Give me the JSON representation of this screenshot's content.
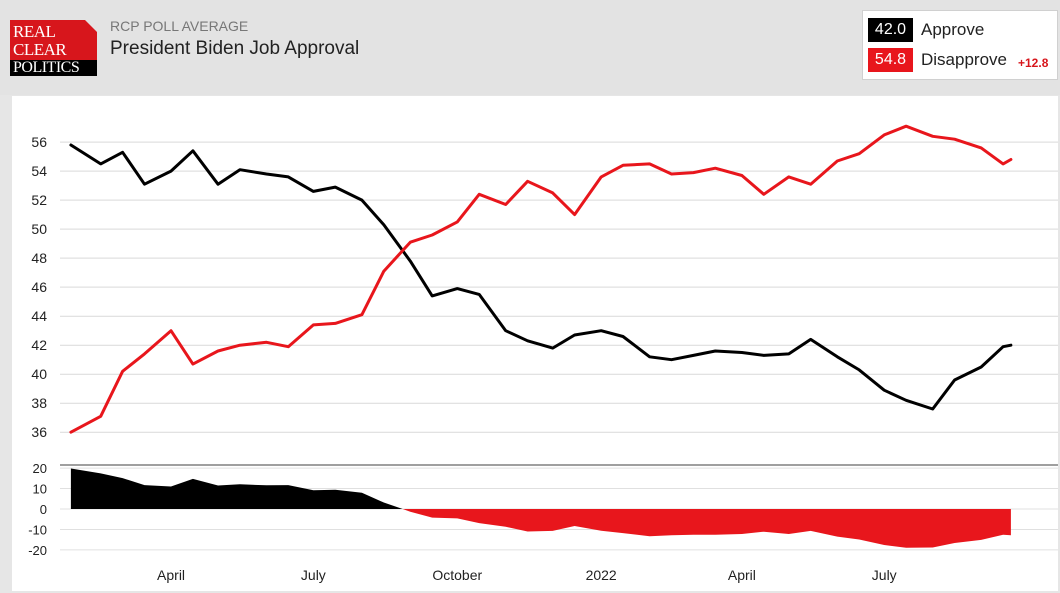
{
  "header": {
    "subtitle": "RCP POLL AVERAGE",
    "title": "President Biden Job Approval",
    "logo": {
      "line1": "REAL",
      "line2": "CLEAR",
      "line3": "POLITICS"
    }
  },
  "legend": {
    "approve": {
      "value": "42.0",
      "label": "Approve",
      "color": "#000000"
    },
    "disapprove": {
      "value": "54.8",
      "label": "Disapprove",
      "color": "#e8161c",
      "spread": "+12.8"
    }
  },
  "chart_data": [
    {
      "type": "line",
      "x": [
        "2021-01-27",
        "2021-02-15",
        "2021-03-01",
        "2021-03-15",
        "2021-04-01",
        "2021-04-15",
        "2021-05-01",
        "2021-05-15",
        "2021-06-01",
        "2021-06-15",
        "2021-07-01",
        "2021-07-15",
        "2021-08-01",
        "2021-08-15",
        "2021-09-01",
        "2021-09-15",
        "2021-10-01",
        "2021-10-15",
        "2021-11-01",
        "2021-11-15",
        "2021-12-01",
        "2021-12-15",
        "2022-01-01",
        "2022-01-15",
        "2022-02-01",
        "2022-02-15",
        "2022-03-01",
        "2022-03-15",
        "2022-04-01",
        "2022-04-15",
        "2022-05-01",
        "2022-05-15",
        "2022-06-01",
        "2022-06-15",
        "2022-07-01",
        "2022-07-15",
        "2022-08-01",
        "2022-08-15",
        "2022-09-01",
        "2022-09-15",
        "2022-09-20"
      ],
      "series": [
        {
          "name": "Approve",
          "color": "#000000",
          "values": [
            55.8,
            54.5,
            55.3,
            53.1,
            54.0,
            55.4,
            53.1,
            54.1,
            53.8,
            53.6,
            52.6,
            52.9,
            52.0,
            50.3,
            47.8,
            45.4,
            45.9,
            45.5,
            43.0,
            42.3,
            41.8,
            42.7,
            43.0,
            42.6,
            41.2,
            41.0,
            41.3,
            41.6,
            41.5,
            41.3,
            41.4,
            42.4,
            41.2,
            40.3,
            38.9,
            38.2,
            37.6,
            39.6,
            40.5,
            41.9,
            42.0
          ]
        },
        {
          "name": "Disapprove",
          "color": "#e8161c",
          "values": [
            36.0,
            37.1,
            40.2,
            41.4,
            43.0,
            40.7,
            41.6,
            42.0,
            42.2,
            41.9,
            43.4,
            43.5,
            44.1,
            47.1,
            49.1,
            49.6,
            50.5,
            52.4,
            51.7,
            53.3,
            52.5,
            51.0,
            53.6,
            54.4,
            54.5,
            53.8,
            53.9,
            54.2,
            53.7,
            52.4,
            53.6,
            53.1,
            54.7,
            55.2,
            56.5,
            57.1,
            56.4,
            56.2,
            55.6,
            54.5,
            54.8
          ]
        }
      ],
      "yticks": [
        36,
        38,
        40,
        42,
        44,
        46,
        48,
        50,
        52,
        54,
        56
      ],
      "ylim": [
        34.5,
        57.8
      ],
      "xticks": [
        "April",
        "July",
        "October",
        "2022",
        "April",
        "July"
      ],
      "grid": true
    },
    {
      "type": "area",
      "x": [
        "2021-01-27",
        "2021-02-15",
        "2021-03-01",
        "2021-03-15",
        "2021-04-01",
        "2021-04-15",
        "2021-05-01",
        "2021-05-15",
        "2021-06-01",
        "2021-06-15",
        "2021-07-01",
        "2021-07-15",
        "2021-08-01",
        "2021-08-15",
        "2021-09-01",
        "2021-09-15",
        "2021-10-01",
        "2021-10-15",
        "2021-11-01",
        "2021-11-15",
        "2021-12-01",
        "2021-12-15",
        "2022-01-01",
        "2022-01-15",
        "2022-02-01",
        "2022-02-15",
        "2022-03-01",
        "2022-03-15",
        "2022-04-01",
        "2022-04-15",
        "2022-05-01",
        "2022-05-15",
        "2022-06-01",
        "2022-06-15",
        "2022-07-01",
        "2022-07-15",
        "2022-08-01",
        "2022-08-15",
        "2022-09-01",
        "2022-09-15",
        "2022-09-20"
      ],
      "series": [
        {
          "name": "Spread",
          "values": [
            19.8,
            17.4,
            15.1,
            11.7,
            11.0,
            14.7,
            11.5,
            12.1,
            11.6,
            11.7,
            9.2,
            9.4,
            7.9,
            3.2,
            -1.3,
            -4.2,
            -4.6,
            -6.9,
            -8.7,
            -11.0,
            -10.7,
            -8.3,
            -10.6,
            -11.8,
            -13.3,
            -12.8,
            -12.6,
            -12.6,
            -12.2,
            -11.1,
            -12.2,
            -10.7,
            -13.5,
            -14.9,
            -17.6,
            -18.9,
            -18.8,
            -16.6,
            -15.1,
            -12.6,
            -12.8
          ]
        }
      ],
      "positive_color": "#000000",
      "negative_color": "#e8161c",
      "yticks": [
        20,
        10,
        0,
        -10,
        -20
      ],
      "ylim": [
        -22,
        22
      ]
    }
  ]
}
